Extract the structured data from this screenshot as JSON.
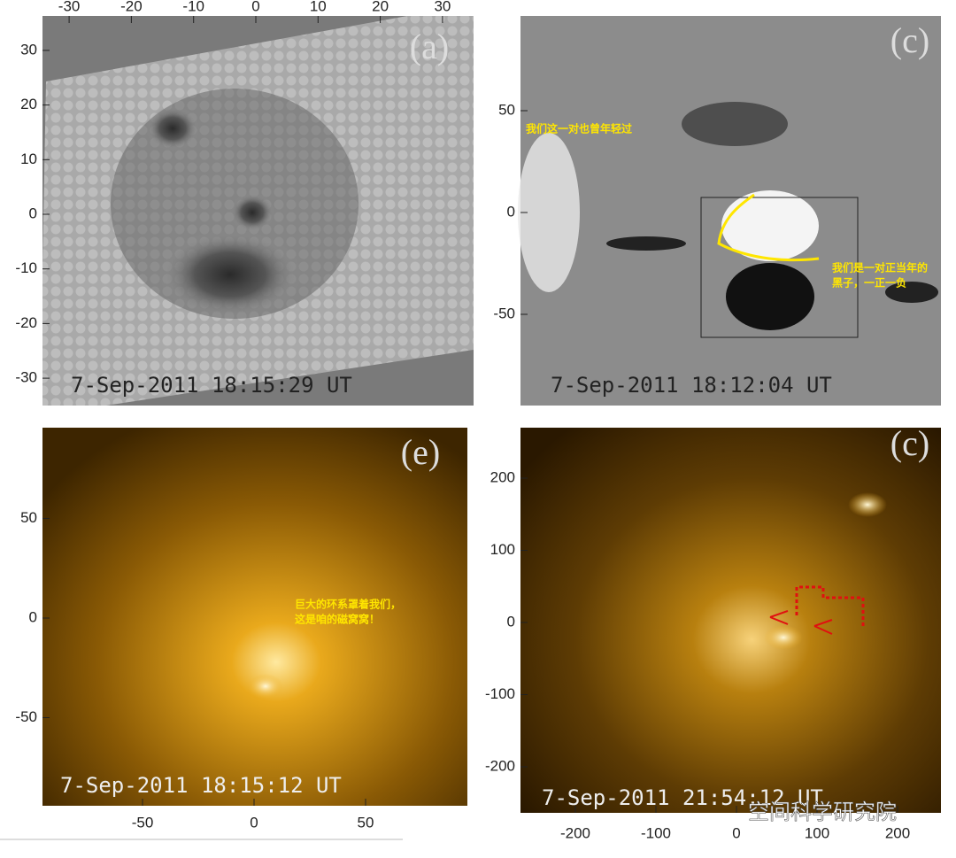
{
  "panels": [
    {
      "label": "(a)",
      "timestamp": "7-Sep-2011 18:15:29 UT",
      "xticks": [
        -30,
        -20,
        -10,
        0,
        10,
        20,
        30
      ],
      "yticks": [
        30,
        20,
        10,
        0,
        -10,
        -20,
        -30
      ]
    },
    {
      "label": "(c)",
      "timestamp": "7-Sep-2011 18:12:04 UT",
      "yticks": [
        50,
        0,
        -50
      ],
      "annotations": [
        [
          "我们这一对也曾年轻过"
        ],
        [
          "我们是一对正当年的",
          "黑子，一正一负"
        ]
      ]
    },
    {
      "label": "(e)",
      "timestamp": "7-Sep-2011 18:15:12 UT",
      "xticks": [
        -50,
        0,
        50
      ],
      "yticks": [
        50,
        0,
        -50
      ],
      "annotations": [
        [
          "巨大的环系罩着我们，",
          "这是咱的磁窝窝！"
        ]
      ]
    },
    {
      "label": "(c)",
      "timestamp": "7-Sep-2011 21:54:12 UT",
      "xticks": [
        -200,
        -100,
        0,
        100,
        200
      ],
      "yticks": [
        200,
        100,
        0,
        -100,
        -200
      ]
    }
  ],
  "watermark": "空间科学研究院"
}
